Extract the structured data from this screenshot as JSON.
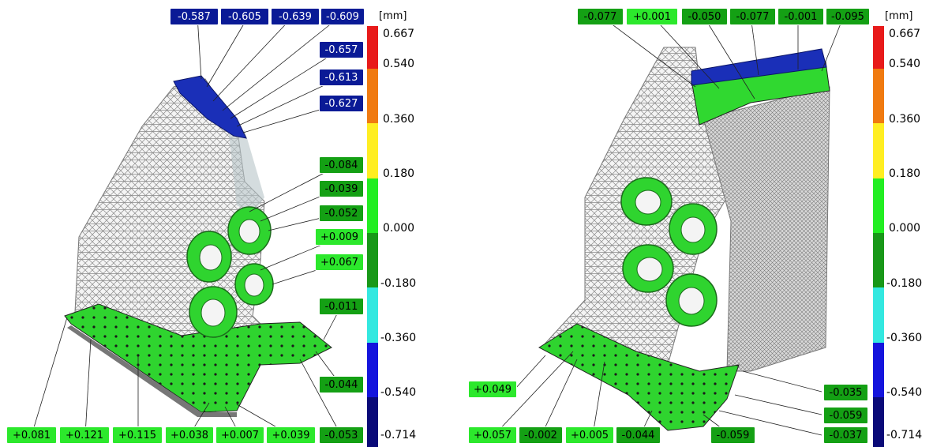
{
  "scale": {
    "unit": "[mm]",
    "ticks": [
      "0.667",
      "0.540",
      "0.360",
      "0.180",
      "0.000",
      "-0.180",
      "-0.360",
      "-0.540",
      "-0.714"
    ],
    "colors": [
      "#e81a1a",
      "#f07a10",
      "#ffee22",
      "#22ee22",
      "#189818",
      "#33e8e0",
      "#1414dd",
      "#0a0a78"
    ]
  },
  "left": {
    "top_labels": [
      "-0.587",
      "-0.605",
      "-0.639",
      "-0.609"
    ],
    "right_labels": [
      "-0.657",
      "-0.613",
      "-0.627",
      "-0.084",
      "-0.039",
      "-0.052",
      "+0.009",
      "+0.067",
      "-0.011",
      "-0.044"
    ],
    "bottom_labels": [
      "+0.081",
      "+0.121",
      "+0.115",
      "+0.038",
      "+0.007",
      "+0.039",
      "-0.053"
    ]
  },
  "right": {
    "top_labels": [
      "-0.077",
      "+0.001",
      "-0.050",
      "-0.077",
      "-0.001",
      "-0.095"
    ],
    "left_labels": [
      "+0.049"
    ],
    "bottom_labels": [
      "+0.057",
      "-0.002",
      "+0.005",
      "-0.044",
      "-0.059"
    ],
    "right_labels": [
      "-0.035",
      "-0.059",
      "-0.037"
    ]
  }
}
